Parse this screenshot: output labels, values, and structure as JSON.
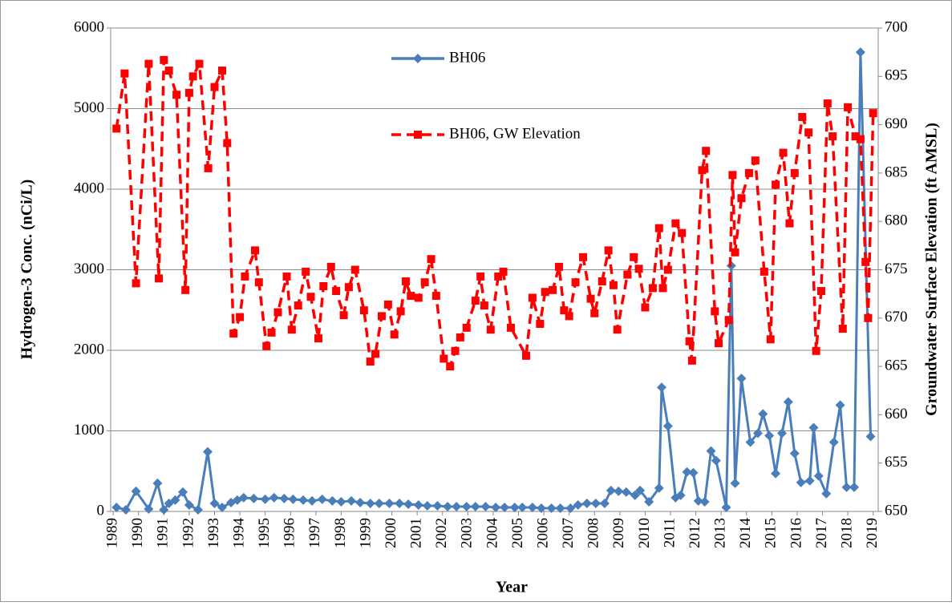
{
  "chart_data": {
    "type": "line",
    "x_label": "Year",
    "y_label": "Hydrogen-3 Conc. (nCi/L)",
    "y2_label": "Groundwater Surface Elevation (ft AMSL)",
    "xlim": [
      1988.9,
      2019.2
    ],
    "xticks": [
      1989,
      1990,
      1991,
      1992,
      1993,
      1994,
      1995,
      1996,
      1997,
      1998,
      1999,
      2000,
      2001,
      2002,
      2003,
      2004,
      2005,
      2006,
      2007,
      2008,
      2009,
      2010,
      2011,
      2012,
      2013,
      2014,
      2015,
      2016,
      2017,
      2018,
      2019
    ],
    "ylim": [
      0,
      6000
    ],
    "yticks": [
      0,
      1000,
      2000,
      3000,
      4000,
      5000,
      6000
    ],
    "y2lim": [
      650,
      700
    ],
    "y2ticks": [
      650,
      655,
      660,
      665,
      670,
      675,
      680,
      685,
      690,
      695,
      700
    ],
    "grid": true,
    "legend": "upper center",
    "series": [
      {
        "name": "BH06",
        "color": "#4a7ebb",
        "marker": "diamond",
        "x": [
          1989.13,
          1989.5,
          1989.9,
          1990.4,
          1990.75,
          1991.0,
          1991.2,
          1991.45,
          1991.75,
          1992.0,
          1992.35,
          1992.73,
          1993.0,
          1993.3,
          1993.65,
          1993.9,
          1994.15,
          1994.55,
          1995.0,
          1995.35,
          1995.75,
          1996.1,
          1996.5,
          1996.85,
          1997.25,
          1997.65,
          1998.0,
          1998.4,
          1998.75,
          1999.15,
          1999.5,
          1999.9,
          2000.3,
          2000.65,
          2001.05,
          2001.4,
          2001.8,
          2002.2,
          2002.55,
          2002.95,
          2003.3,
          2003.7,
          2004.1,
          2004.45,
          2004.85,
          2005.15,
          2005.55,
          2005.9,
          2006.3,
          2006.65,
          2007.05,
          2007.35,
          2007.7,
          2008.05,
          2008.4,
          2008.65,
          2008.95,
          2009.25,
          2009.6,
          2009.8,
          2010.15,
          2010.55,
          2010.65,
          2010.9,
          2011.2,
          2011.4,
          2011.65,
          2011.9,
          2012.1,
          2012.35,
          2012.6,
          2012.8,
          2013.2,
          2013.4,
          2013.55,
          2013.8,
          2014.15,
          2014.45,
          2014.65,
          2014.9,
          2015.15,
          2015.4,
          2015.65,
          2015.9,
          2016.15,
          2016.5,
          2016.65,
          2016.85,
          2017.15,
          2017.45,
          2017.7,
          2017.95,
          2018.25,
          2018.5,
          2018.9
        ],
        "values": [
          50,
          20,
          250,
          30,
          350,
          20,
          100,
          140,
          240,
          80,
          20,
          740,
          100,
          50,
          110,
          140,
          170,
          160,
          150,
          170,
          160,
          150,
          140,
          130,
          150,
          130,
          120,
          130,
          110,
          100,
          100,
          100,
          100,
          90,
          80,
          70,
          70,
          60,
          60,
          60,
          60,
          60,
          50,
          50,
          50,
          50,
          50,
          40,
          40,
          40,
          40,
          80,
          100,
          100,
          100,
          260,
          250,
          240,
          200,
          260,
          120,
          290,
          1540,
          1060,
          170,
          200,
          490,
          480,
          130,
          120,
          750,
          630,
          50,
          3050,
          350,
          1650,
          860,
          970,
          1210,
          940,
          470,
          970,
          1360,
          720,
          360,
          380,
          1040,
          440,
          220,
          860,
          1320,
          300,
          300,
          5700,
          930
        ]
      },
      {
        "name": "BH06, GW Elevation",
        "color": "#ff0000",
        "marker": "square",
        "axis": "y2",
        "dashed": true,
        "x": [
          1989.13,
          1989.45,
          1989.9,
          1990.4,
          1990.8,
          1991.0,
          1991.2,
          1991.5,
          1991.85,
          1992.0,
          1992.15,
          1992.4,
          1992.75,
          1993.0,
          1993.3,
          1993.5,
          1993.75,
          1994.0,
          1994.2,
          1994.6,
          1994.75,
          1995.05,
          1995.25,
          1995.5,
          1995.85,
          1996.05,
          1996.3,
          1996.6,
          1996.8,
          1997.1,
          1997.3,
          1997.6,
          1997.8,
          1998.1,
          1998.3,
          1998.55,
          1998.9,
          1999.15,
          1999.35,
          1999.6,
          1999.85,
          2000.1,
          2000.35,
          2000.55,
          2000.75,
          2001.05,
          2001.3,
          2001.55,
          2001.75,
          2002.05,
          2002.3,
          2002.5,
          2002.7,
          2002.95,
          2003.3,
          2003.5,
          2003.65,
          2003.9,
          2004.2,
          2004.4,
          2004.7,
          2005.3,
          2005.55,
          2005.85,
          2006.05,
          2006.35,
          2006.6,
          2006.8,
          2007.0,
          2007.25,
          2007.55,
          2007.85,
          2008.0,
          2008.3,
          2008.55,
          2008.75,
          2008.9,
          2009.3,
          2009.55,
          2009.75,
          2010.0,
          2010.3,
          2010.55,
          2010.7,
          2010.9,
          2011.2,
          2011.45,
          2011.75,
          2011.85,
          2012.25,
          2012.4,
          2012.75,
          2012.9,
          2013.3,
          2013.45,
          2013.55,
          2013.8,
          2014.1,
          2014.35,
          2014.7,
          2014.95,
          2015.15,
          2015.45,
          2015.7,
          2015.9,
          2016.2,
          2016.45,
          2016.75,
          2016.95,
          2017.2,
          2017.4,
          2017.8,
          2018.0,
          2018.3,
          2018.5,
          2018.7,
          2018.8,
          2019.0
        ],
        "values": [
          689.6,
          695.3,
          673.6,
          696.3,
          674.1,
          696.7,
          695.6,
          693.1,
          672.9,
          693.3,
          695.0,
          696.3,
          685.5,
          693.9,
          695.6,
          688.1,
          668.4,
          670.1,
          674.3,
          677.0,
          673.7,
          667.1,
          668.5,
          670.6,
          674.3,
          668.8,
          671.3,
          674.8,
          672.2,
          667.9,
          673.3,
          675.3,
          672.8,
          670.3,
          673.2,
          675.0,
          670.8,
          665.5,
          666.3,
          670.2,
          671.4,
          668.3,
          670.7,
          673.8,
          672.3,
          672.1,
          673.7,
          676.1,
          672.3,
          665.8,
          665.0,
          666.6,
          668.0,
          669.0,
          671.8,
          674.3,
          671.3,
          668.8,
          674.3,
          674.8,
          669.0,
          666.1,
          672.1,
          669.4,
          672.7,
          672.9,
          675.3,
          670.8,
          670.2,
          673.7,
          676.3,
          672.0,
          670.5,
          673.8,
          677.0,
          673.4,
          668.8,
          674.5,
          676.3,
          675.1,
          671.1,
          673.1,
          679.3,
          673.1,
          675.0,
          679.8,
          678.8,
          667.6,
          665.6,
          685.3,
          687.3,
          670.7,
          667.4,
          669.8,
          684.8,
          676.8,
          682.4,
          685.0,
          686.3,
          674.8,
          667.8,
          683.8,
          687.1,
          679.8,
          685.0,
          690.8,
          689.2,
          666.6,
          672.8,
          692.2,
          688.8,
          668.9,
          691.8,
          688.8,
          688.5,
          675.8,
          670.0,
          691.2
        ]
      }
    ]
  }
}
